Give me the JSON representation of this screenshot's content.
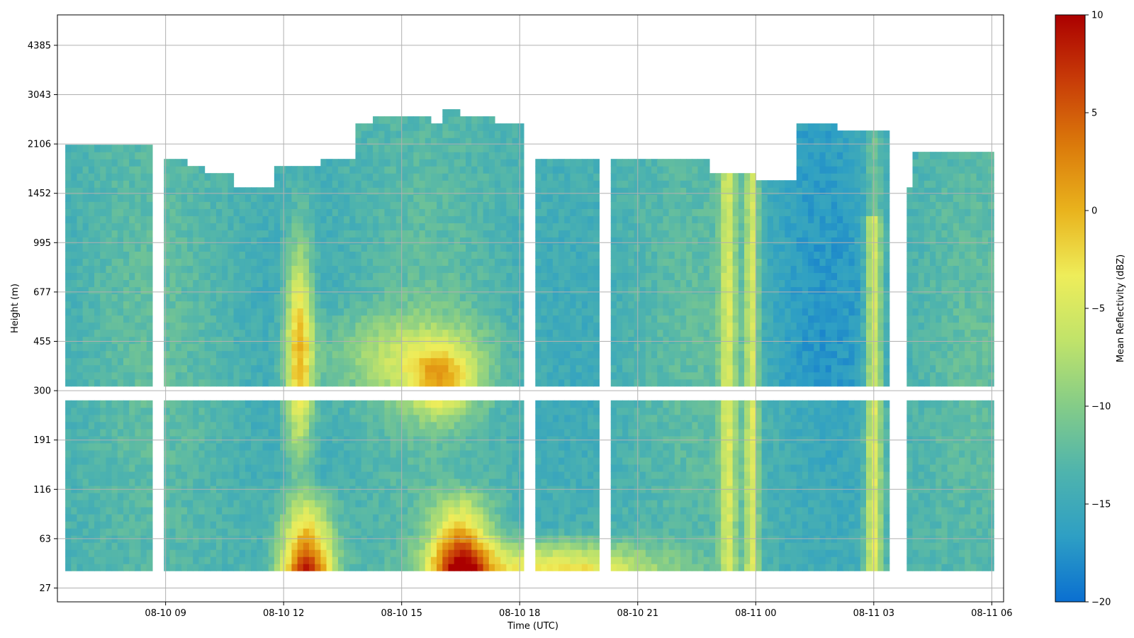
{
  "chart_data": {
    "type": "heatmap",
    "title": "",
    "xlabel": "Time (UTC)",
    "ylabel": "Height (m)",
    "x_tick_labels": [
      "08-10 09",
      "08-10 12",
      "08-10 15",
      "08-10 18",
      "08-10 21",
      "08-11 00",
      "08-11 03",
      "08-11 06"
    ],
    "y_tick_labels": [
      "27",
      "63",
      "116",
      "191",
      "300",
      "455",
      "677",
      "995",
      "1452",
      "2106",
      "3043",
      "4385"
    ],
    "grid": true,
    "colorbar": {
      "label": "Mean Reflectivity (dBZ)",
      "range": [
        -20,
        10
      ],
      "tick_labels": [
        "10",
        "5",
        "0",
        "−5",
        "−10",
        "−15",
        "−20"
      ],
      "colormap": "blue-green-yellow-red",
      "stops": [
        "#0a6fd1",
        "#2e9fc4",
        "#4fb4ad",
        "#84cc88",
        "#c0e36a",
        "#eeed5a",
        "#e9b31d",
        "#db7a0b",
        "#c83c08",
        "#ab0000"
      ]
    },
    "data_gaps_time": [
      "08-10 08:45",
      "08-10 18:10",
      "08-10 20:00",
      "08-11 03:45"
    ],
    "features": [
      {
        "time": "08-10 12:30",
        "near_surface_dbz": 9,
        "description": "strong echo near 63 m"
      },
      {
        "time": "08-10 16:30",
        "near_surface_dbz": 9
      },
      {
        "time": "08-10 23:30",
        "column_dbz": -4
      },
      {
        "time": "08-11 03:00",
        "column_dbz": -3
      }
    ]
  }
}
